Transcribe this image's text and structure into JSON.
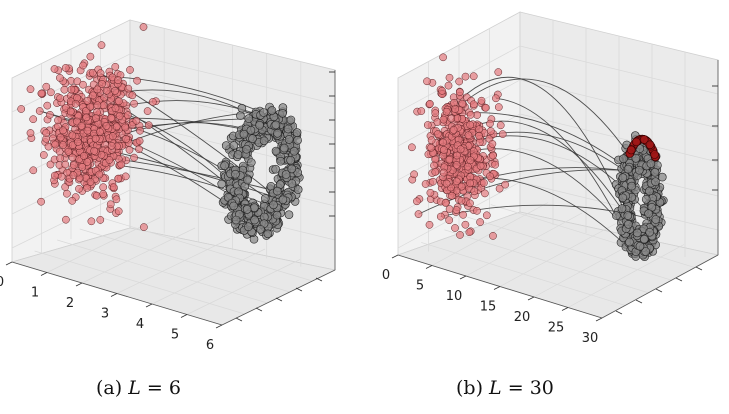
{
  "chart_data": [
    {
      "type": "scatter",
      "caption": {
        "label": "(a)",
        "var": "L",
        "eq": "=",
        "value": "6"
      },
      "L": 6,
      "x_ticks": [
        0,
        1,
        2,
        3,
        4,
        5,
        6
      ],
      "xlim": [
        0,
        6
      ],
      "series": [
        {
          "role": "source",
          "color": "#e47b7f",
          "shape": "gaussian-blob",
          "count": 650
        },
        {
          "role": "target",
          "color": "#8a8a8a",
          "shape": "ring-spiral",
          "count": 550
        }
      ],
      "trajectories": 16
    },
    {
      "type": "scatter",
      "caption": {
        "label": "(b)",
        "var": "L",
        "eq": "=",
        "value": "30"
      },
      "L": 30,
      "x_ticks": [
        0,
        5,
        10,
        15,
        20,
        25,
        30
      ],
      "xlim": [
        0,
        30
      ],
      "series": [
        {
          "role": "source",
          "color": "#e47b7f",
          "shape": "gaussian-blob",
          "count": 500
        },
        {
          "role": "target",
          "color": "#8a8a8a",
          "shape": "ring-spiral",
          "count": 500
        },
        {
          "role": "highlight",
          "color": "#a01818",
          "shape": "ring-edge",
          "count": 50
        }
      ],
      "trajectories": 12
    }
  ]
}
